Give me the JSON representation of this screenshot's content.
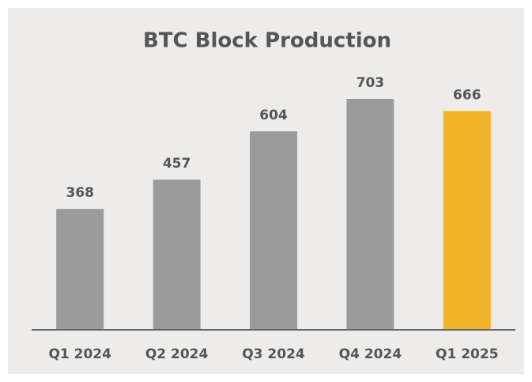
{
  "chart_data": {
    "type": "bar",
    "title": "BTC Block Production",
    "categories": [
      "Q1 2024",
      "Q2 2024",
      "Q3 2024",
      "Q4 2024",
      "Q1 2025"
    ],
    "values": [
      368,
      457,
      604,
      703,
      666
    ],
    "colors": [
      "#9b9b9b",
      "#9b9b9b",
      "#9b9b9b",
      "#9b9b9b",
      "#f2b52a"
    ]
  }
}
